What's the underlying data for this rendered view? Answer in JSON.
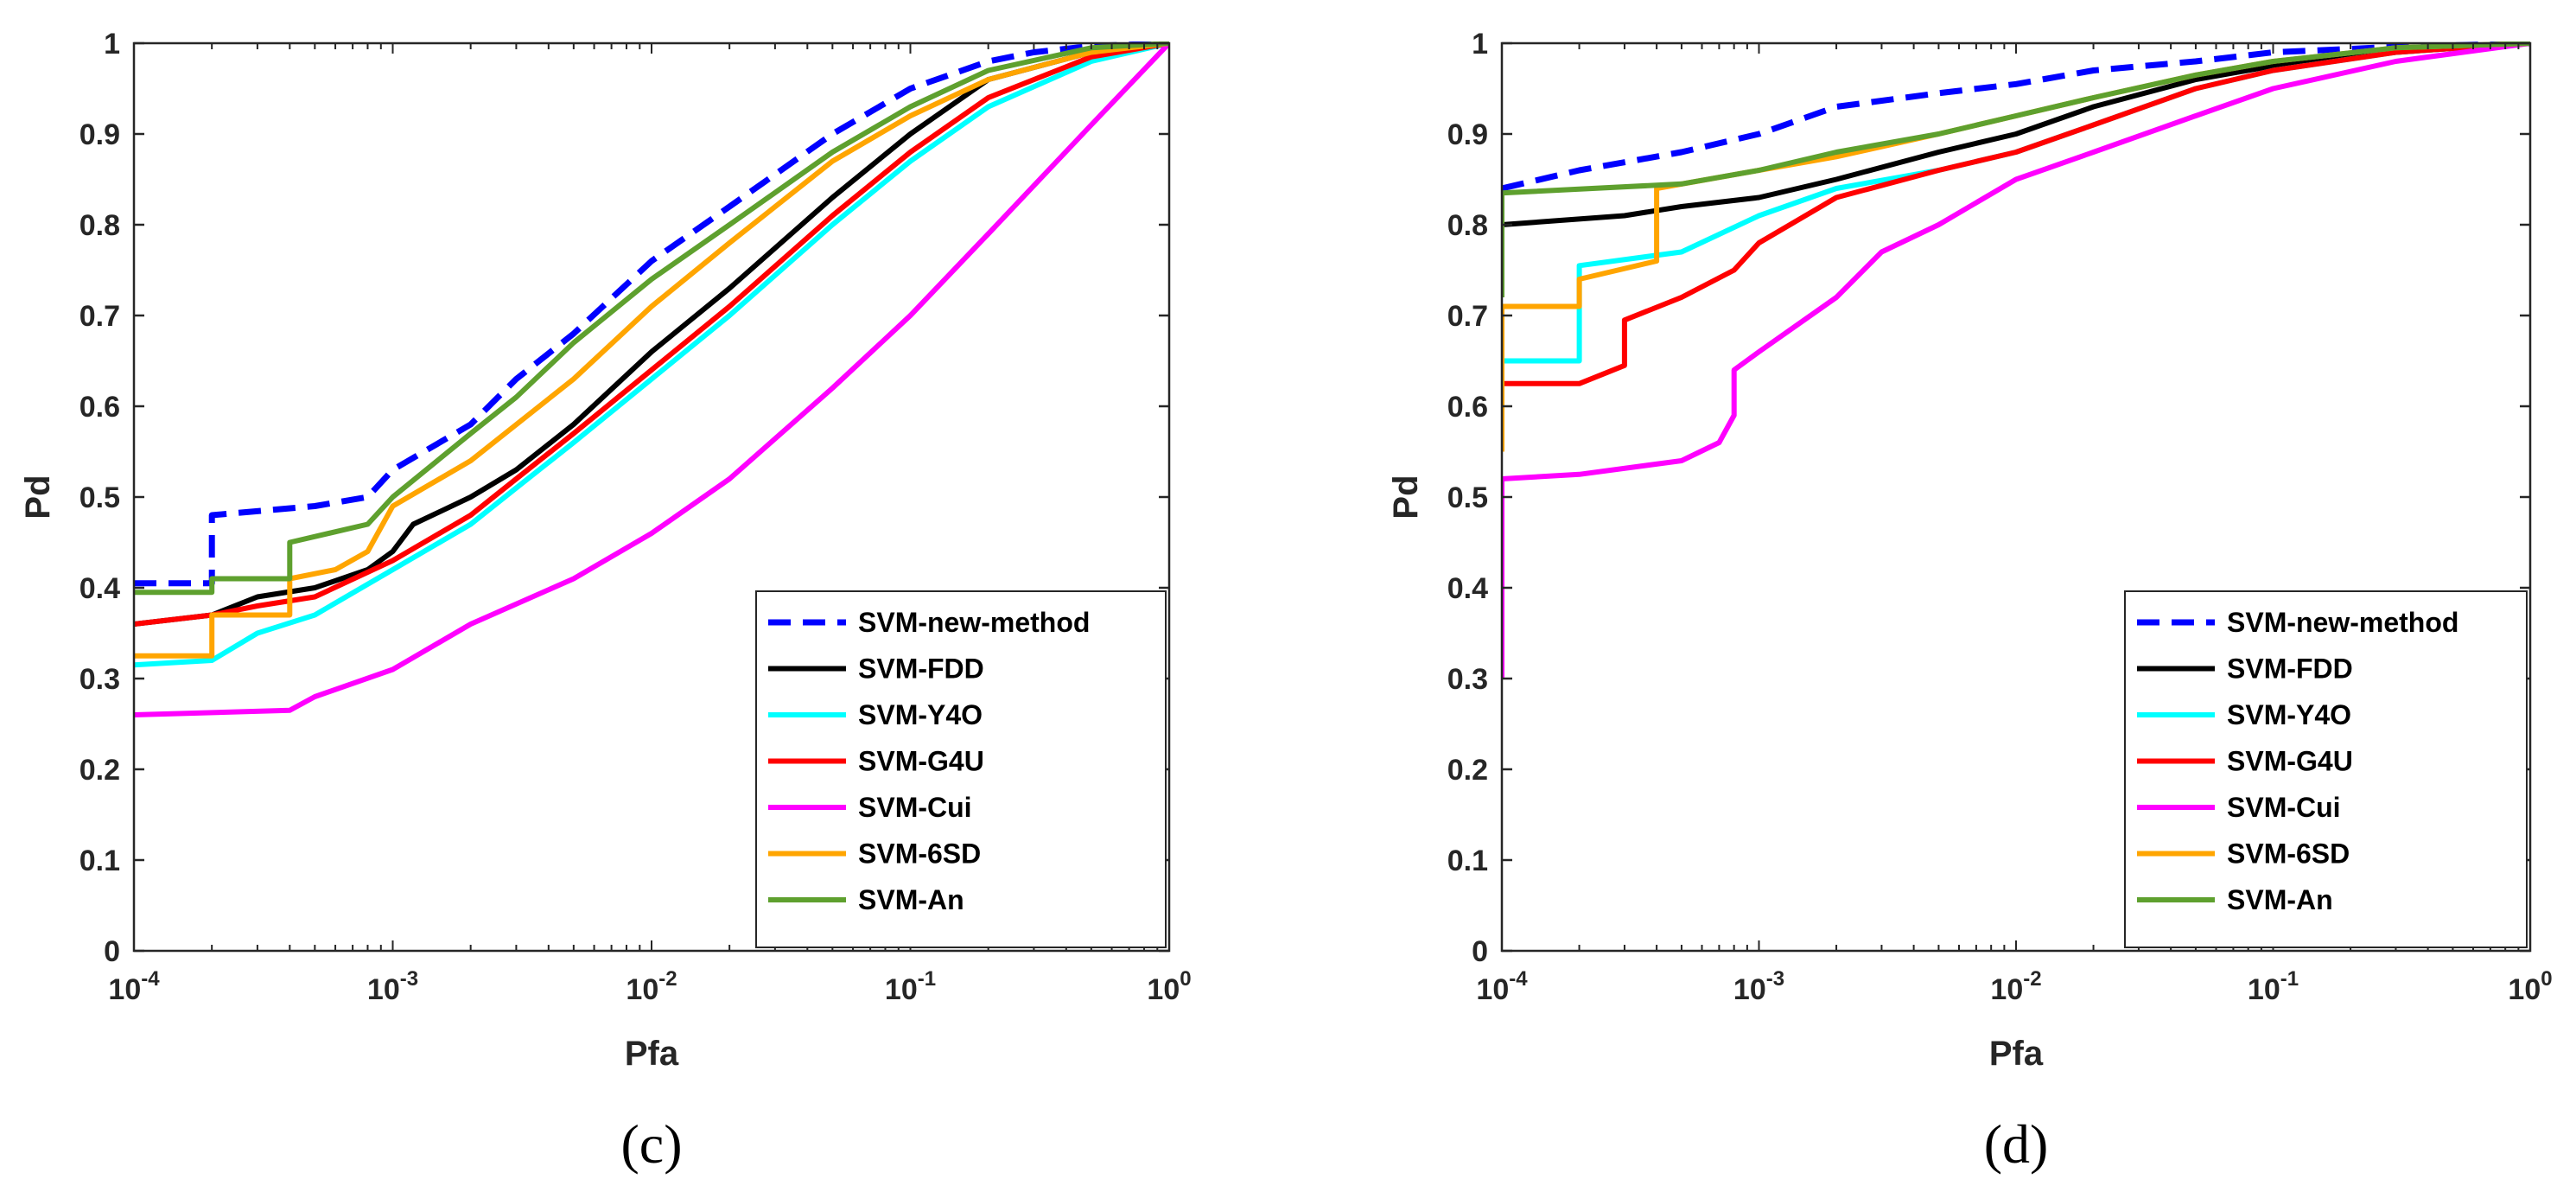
{
  "chart_data": [
    {
      "type": "line",
      "caption": "(c)",
      "xlabel": "Pfa",
      "ylabel": "Pd",
      "xscale": "log",
      "xlim": [
        0.0001,
        1
      ],
      "ylim": [
        0,
        1
      ],
      "xticks": [
        {
          "value": 0.0001,
          "base": "10",
          "exp": "-4"
        },
        {
          "value": 0.001,
          "base": "10",
          "exp": "-3"
        },
        {
          "value": 0.01,
          "base": "10",
          "exp": "-2"
        },
        {
          "value": 0.1,
          "base": "10",
          "exp": "-1"
        },
        {
          "value": 1,
          "base": "10",
          "exp": "0"
        }
      ],
      "yticks": [
        "0",
        "0.1",
        "0.2",
        "0.3",
        "0.4",
        "0.5",
        "0.6",
        "0.7",
        "0.8",
        "0.9",
        "1"
      ],
      "legend_position": "bottom-right",
      "series": [
        {
          "name": "SVM-new-method",
          "color": "#0000ff",
          "style": "dashed",
          "x": [
            0.0001,
            0.0002,
            0.0002,
            0.0005,
            0.0008,
            0.001,
            0.002,
            0.003,
            0.005,
            0.01,
            0.02,
            0.05,
            0.1,
            0.2,
            0.3,
            0.5,
            1
          ],
          "y": [
            0.405,
            0.405,
            0.48,
            0.49,
            0.5,
            0.53,
            0.58,
            0.63,
            0.68,
            0.76,
            0.82,
            0.9,
            0.95,
            0.98,
            0.99,
            0.997,
            1
          ]
        },
        {
          "name": "SVM-FDD",
          "color": "#000000",
          "style": "solid",
          "x": [
            0.0001,
            0.0002,
            0.0003,
            0.0005,
            0.0008,
            0.001,
            0.0012,
            0.002,
            0.003,
            0.005,
            0.01,
            0.02,
            0.05,
            0.1,
            0.2,
            0.5,
            1
          ],
          "y": [
            0.36,
            0.37,
            0.39,
            0.4,
            0.42,
            0.44,
            0.47,
            0.5,
            0.53,
            0.58,
            0.66,
            0.73,
            0.83,
            0.9,
            0.96,
            0.99,
            1
          ]
        },
        {
          "name": "SVM-Y4O",
          "color": "#00ffff",
          "style": "solid",
          "x": [
            0.0001,
            0.0002,
            0.0003,
            0.0005,
            0.001,
            0.002,
            0.003,
            0.005,
            0.01,
            0.02,
            0.05,
            0.1,
            0.2,
            0.5,
            1
          ],
          "y": [
            0.315,
            0.32,
            0.35,
            0.37,
            0.42,
            0.47,
            0.51,
            0.56,
            0.63,
            0.7,
            0.8,
            0.87,
            0.93,
            0.98,
            1
          ]
        },
        {
          "name": "SVM-G4U",
          "color": "#ff0000",
          "style": "solid",
          "x": [
            0.0001,
            0.0002,
            0.0003,
            0.0005,
            0.001,
            0.002,
            0.003,
            0.005,
            0.01,
            0.02,
            0.05,
            0.1,
            0.2,
            0.5,
            1
          ],
          "y": [
            0.36,
            0.37,
            0.38,
            0.39,
            0.43,
            0.48,
            0.52,
            0.57,
            0.64,
            0.71,
            0.81,
            0.88,
            0.94,
            0.985,
            1
          ]
        },
        {
          "name": "SVM-Cui",
          "color": "#ff00ff",
          "style": "solid",
          "x": [
            0.0001,
            0.0004,
            0.0005,
            0.001,
            0.002,
            0.005,
            0.01,
            0.02,
            0.05,
            0.1,
            0.2,
            0.5,
            1
          ],
          "y": [
            0.26,
            0.265,
            0.28,
            0.31,
            0.36,
            0.41,
            0.46,
            0.52,
            0.62,
            0.7,
            0.79,
            0.91,
            1
          ]
        },
        {
          "name": "SVM-6SD",
          "color": "#ffa500",
          "style": "solid",
          "x": [
            0.0001,
            0.0002,
            0.0002,
            0.0004,
            0.0004,
            0.0006,
            0.0008,
            0.001,
            0.002,
            0.005,
            0.01,
            0.02,
            0.05,
            0.1,
            0.2,
            0.5,
            1
          ],
          "y": [
            0.325,
            0.325,
            0.37,
            0.37,
            0.41,
            0.42,
            0.44,
            0.49,
            0.54,
            0.63,
            0.71,
            0.78,
            0.87,
            0.92,
            0.96,
            0.99,
            1
          ]
        },
        {
          "name": "SVM-An",
          "color": "#5ea02e",
          "style": "solid",
          "x": [
            0.0001,
            0.0002,
            0.0002,
            0.0004,
            0.0004,
            0.0008,
            0.001,
            0.002,
            0.003,
            0.005,
            0.01,
            0.02,
            0.05,
            0.1,
            0.2,
            0.5,
            1
          ],
          "y": [
            0.395,
            0.395,
            0.41,
            0.41,
            0.45,
            0.47,
            0.5,
            0.57,
            0.61,
            0.67,
            0.74,
            0.8,
            0.88,
            0.93,
            0.97,
            0.995,
            1
          ]
        }
      ]
    },
    {
      "type": "line",
      "caption": "(d)",
      "xlabel": "Pfa",
      "ylabel": "Pd",
      "xscale": "log",
      "xlim": [
        0.0001,
        1
      ],
      "ylim": [
        0,
        1
      ],
      "xticks": [
        {
          "value": 0.0001,
          "base": "10",
          "exp": "-4"
        },
        {
          "value": 0.001,
          "base": "10",
          "exp": "-3"
        },
        {
          "value": 0.01,
          "base": "10",
          "exp": "-2"
        },
        {
          "value": 0.1,
          "base": "10",
          "exp": "-1"
        },
        {
          "value": 1,
          "base": "10",
          "exp": "0"
        }
      ],
      "yticks": [
        "0",
        "0.1",
        "0.2",
        "0.3",
        "0.4",
        "0.5",
        "0.6",
        "0.7",
        "0.8",
        "0.9",
        "1"
      ],
      "legend_position": "bottom-right",
      "series": [
        {
          "name": "SVM-new-method",
          "color": "#0000ff",
          "style": "dashed",
          "x": [
            0.0001,
            0.0002,
            0.0005,
            0.001,
            0.002,
            0.005,
            0.01,
            0.02,
            0.05,
            0.1,
            0.3,
            1
          ],
          "y": [
            0.84,
            0.86,
            0.88,
            0.9,
            0.93,
            0.945,
            0.955,
            0.97,
            0.98,
            0.99,
            0.996,
            1
          ]
        },
        {
          "name": "SVM-FDD",
          "color": "#000000",
          "style": "solid",
          "x": [
            0.0001,
            0.0003,
            0.0005,
            0.001,
            0.002,
            0.005,
            0.01,
            0.02,
            0.05,
            0.1,
            0.3,
            1
          ],
          "y": [
            0.8,
            0.81,
            0.82,
            0.83,
            0.85,
            0.88,
            0.9,
            0.93,
            0.96,
            0.975,
            0.99,
            1
          ]
        },
        {
          "name": "SVM-Y4O",
          "color": "#00ffff",
          "style": "solid",
          "x": [
            0.0001,
            0.0002,
            0.0002,
            0.0005,
            0.001,
            0.002,
            0.005,
            0.01,
            0.02,
            0.05,
            0.1,
            0.3,
            1
          ],
          "y": [
            0.65,
            0.65,
            0.755,
            0.77,
            0.81,
            0.84,
            0.86,
            0.88,
            0.91,
            0.95,
            0.97,
            0.99,
            1
          ]
        },
        {
          "name": "SVM-G4U",
          "color": "#ff0000",
          "style": "solid",
          "x": [
            0.0001,
            0.0002,
            0.0003,
            0.0003,
            0.0005,
            0.0008,
            0.001,
            0.002,
            0.005,
            0.01,
            0.02,
            0.05,
            0.1,
            0.3,
            1
          ],
          "y": [
            0.625,
            0.625,
            0.645,
            0.695,
            0.72,
            0.75,
            0.78,
            0.83,
            0.86,
            0.88,
            0.91,
            0.95,
            0.97,
            0.99,
            1
          ]
        },
        {
          "name": "SVM-Cui",
          "color": "#ff00ff",
          "style": "solid",
          "x": [
            0.0001,
            0.0001,
            0.0002,
            0.0005,
            0.0007,
            0.0008,
            0.0008,
            0.001,
            0.002,
            0.003,
            0.005,
            0.01,
            0.02,
            0.05,
            0.1,
            0.3,
            1
          ],
          "y": [
            0.3,
            0.52,
            0.525,
            0.54,
            0.56,
            0.59,
            0.64,
            0.66,
            0.72,
            0.77,
            0.8,
            0.85,
            0.88,
            0.92,
            0.95,
            0.98,
            1
          ]
        },
        {
          "name": "SVM-6SD",
          "color": "#ffa500",
          "style": "solid",
          "x": [
            0.0001,
            0.0001,
            0.0002,
            0.0002,
            0.0004,
            0.0004,
            0.001,
            0.002,
            0.005,
            0.01,
            0.02,
            0.05,
            0.1,
            0.3,
            1
          ],
          "y": [
            0.55,
            0.71,
            0.71,
            0.74,
            0.76,
            0.84,
            0.86,
            0.875,
            0.9,
            0.92,
            0.94,
            0.965,
            0.98,
            0.995,
            1
          ]
        },
        {
          "name": "SVM-An",
          "color": "#5ea02e",
          "style": "solid",
          "x": [
            0.0001,
            0.0001,
            0.0005,
            0.001,
            0.002,
            0.005,
            0.01,
            0.02,
            0.05,
            0.1,
            0.3,
            1
          ],
          "y": [
            0.72,
            0.835,
            0.845,
            0.86,
            0.88,
            0.9,
            0.92,
            0.94,
            0.965,
            0.98,
            0.995,
            1
          ]
        }
      ]
    }
  ]
}
